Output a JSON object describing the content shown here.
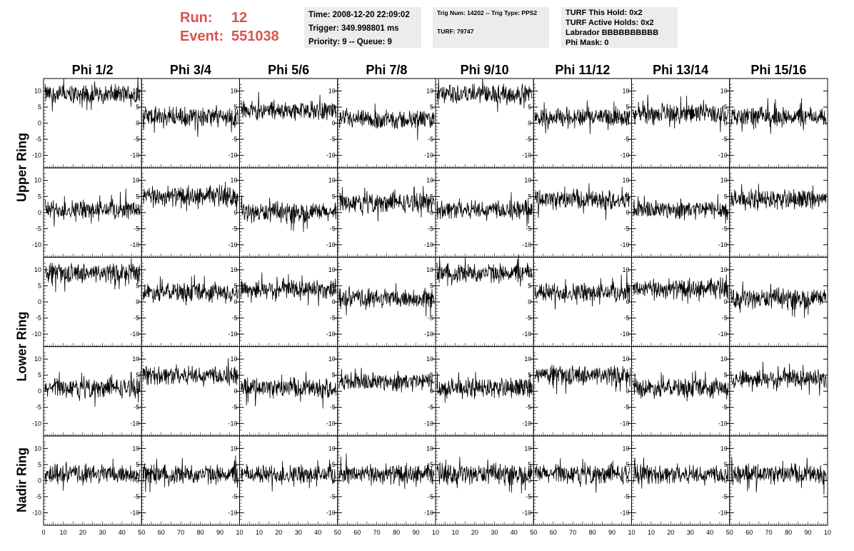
{
  "header": {
    "run_label": "Run:",
    "run_value": "12",
    "event_label": "Event:",
    "event_value": "551038"
  },
  "info_box_1": {
    "time": "Time: 2008-12-20 22:09:02",
    "trigger": "Trigger: 349.998801 ms",
    "priority": "Priority: 9 -- Queue: 9"
  },
  "info_box_2": {
    "trig": "Trig Num: 14202 -- Trig Type: PPS2",
    "turf": "TURF: 79747"
  },
  "info_box_3": {
    "this_hold": "TURF This Hold: 0x2",
    "active_holds": "TURF Active Holds: 0x2",
    "labrador": "Labrador BBBBBBBBBB",
    "phi_mask": "Phi Mask: 0"
  },
  "colors": {
    "header_red": "#d9534f",
    "info_bg": "#ececec",
    "trace": "#000000"
  },
  "chart_data": {
    "type": "line",
    "columns": [
      "Phi 1/2",
      "Phi 3/4",
      "Phi 5/6",
      "Phi 7/8",
      "Phi 9/10",
      "Phi 11/12",
      "Phi 13/14",
      "Phi 15/16"
    ],
    "row_labels": [
      {
        "label": "Upper Ring",
        "rows": [
          0,
          1
        ]
      },
      {
        "label": "Lower Ring",
        "rows": [
          2,
          3
        ]
      },
      {
        "label": "Nadir Ring",
        "rows": [
          4
        ]
      }
    ],
    "xlim": [
      0,
      100
    ],
    "ylim": [
      -13,
      13
    ],
    "yticks": [
      -10,
      -5,
      0,
      5,
      10
    ],
    "xticks": [
      0,
      10,
      20,
      30,
      40,
      50,
      60,
      70,
      80,
      90,
      100
    ],
    "xtick_labels_row": [
      "0",
      "10",
      "20",
      "30",
      "40",
      "50",
      "60",
      "70",
      "80",
      "90",
      "10",
      "10",
      "20",
      "30",
      "40",
      "50",
      "60",
      "70",
      "80",
      "90",
      "10",
      "10",
      "20",
      "30",
      "40",
      "50",
      "60",
      "70",
      "80",
      "90",
      "10",
      "10",
      "20",
      "30",
      "40",
      "50",
      "60",
      "70",
      "80",
      "90",
      "10"
    ],
    "panels_baseline": [
      [
        9,
        2,
        4,
        1,
        9,
        2,
        3,
        2
      ],
      [
        1,
        5,
        0,
        3,
        1,
        4,
        1,
        4
      ],
      [
        9,
        3,
        4,
        1,
        9,
        3,
        4,
        1
      ],
      [
        1,
        5,
        1,
        3,
        1,
        5,
        1,
        4
      ],
      [
        2,
        2,
        2,
        2,
        2,
        2,
        2,
        2
      ]
    ],
    "samples_per_trace": 260,
    "trace_amplitude": 2.5
  }
}
